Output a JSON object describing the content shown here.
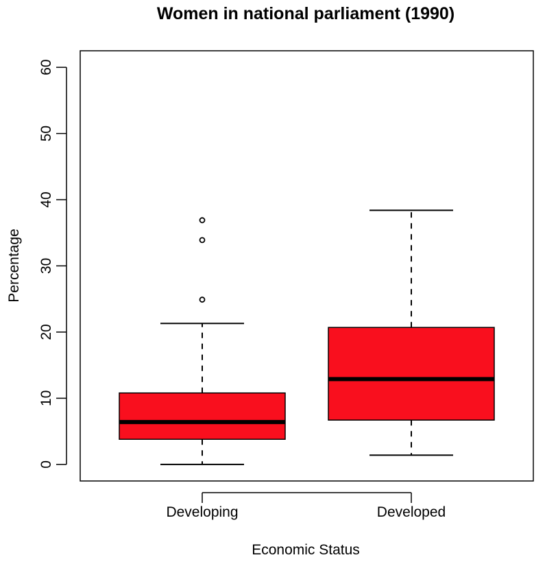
{
  "chart_data": {
    "type": "boxplot",
    "title": "Women in national parliament (1990)",
    "xlabel": "Economic Status",
    "ylabel": "Percentage",
    "ylim": [
      -2.5,
      62.5
    ],
    "yticks": [
      0,
      10,
      20,
      30,
      40,
      50,
      60
    ],
    "ytick_labels": [
      "0",
      "10",
      "20",
      "30",
      "40",
      "50",
      "60"
    ],
    "grid": false,
    "legend": "none",
    "box_color": "#f90f1e",
    "categories": [
      "Developing",
      "Developed"
    ],
    "boxes": [
      {
        "name": "Developing",
        "whisker_low": 0,
        "q1": 3.8,
        "median": 6.4,
        "q3": 10.8,
        "whisker_high": 21.3,
        "outliers": [
          24.9,
          33.9,
          36.9
        ]
      },
      {
        "name": "Developed",
        "whisker_low": 1.4,
        "q1": 6.7,
        "median": 12.9,
        "q3": 20.7,
        "whisker_high": 38.4,
        "outliers": []
      }
    ]
  }
}
